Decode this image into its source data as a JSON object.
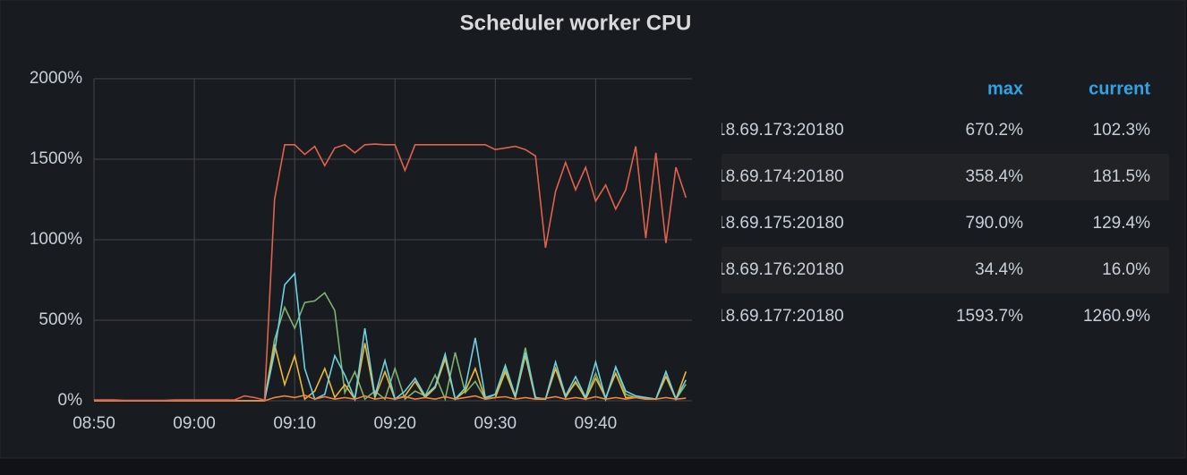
{
  "chart_data": {
    "type": "line",
    "title": "Scheduler worker CPU",
    "x": [
      "08:50",
      "08:51",
      "08:52",
      "08:53",
      "08:54",
      "08:55",
      "08:56",
      "08:57",
      "08:58",
      "08:59",
      "09:00",
      "09:01",
      "09:02",
      "09:03",
      "09:04",
      "09:05",
      "09:06",
      "09:07",
      "09:08",
      "09:09",
      "09:10",
      "09:11",
      "09:12",
      "09:13",
      "09:14",
      "09:15",
      "09:16",
      "09:17",
      "09:18",
      "09:19",
      "09:20",
      "09:21",
      "09:22",
      "09:23",
      "09:24",
      "09:25",
      "09:26",
      "09:27",
      "09:28",
      "09:29",
      "09:30",
      "09:31",
      "09:32",
      "09:33",
      "09:34",
      "09:35",
      "09:36",
      "09:37",
      "09:38",
      "09:39",
      "09:40",
      "09:41",
      "09:42",
      "09:43",
      "09:44",
      "09:45",
      "09:46",
      "09:47",
      "09:48",
      "09:49"
    ],
    "xlim": [
      "08:50",
      "09:49"
    ],
    "xticks": [
      "08:50",
      "09:00",
      "09:10",
      "09:20",
      "09:30",
      "09:40"
    ],
    "ylim": [
      0,
      2000
    ],
    "yticks": [
      {
        "value": 0,
        "label": "0%"
      },
      {
        "value": 500,
        "label": "500%"
      },
      {
        "value": 1000,
        "label": "1000%"
      },
      {
        "value": 1500,
        "label": "1500%"
      },
      {
        "value": 2000,
        "label": "2000%"
      }
    ],
    "grid": true,
    "legend_columns": [
      "max",
      "current"
    ],
    "series": [
      {
        "name": "18.69.173:20180",
        "color": "#7eb26d",
        "max": "670.2%",
        "current": "102.3%",
        "values": [
          0,
          0,
          0,
          0,
          0,
          0,
          0,
          0,
          0,
          0,
          0,
          0,
          0,
          0,
          0,
          0,
          0,
          0,
          380,
          580,
          450,
          610,
          620,
          670.2,
          560,
          50,
          180,
          10,
          60,
          10,
          200,
          10,
          60,
          30,
          160,
          10,
          300,
          50,
          120,
          10,
          40,
          200,
          30,
          330,
          20,
          10,
          200,
          30,
          110,
          20,
          170,
          10,
          210,
          40,
          20,
          20,
          10,
          180,
          10,
          102.3
        ]
      },
      {
        "name": "18.69.174:20180",
        "color": "#eab839",
        "max": "358.4%",
        "current": "181.5%",
        "values": [
          0,
          0,
          0,
          0,
          0,
          0,
          0,
          0,
          0,
          0,
          0,
          0,
          0,
          0,
          0,
          0,
          0,
          0,
          350,
          100,
          280,
          10,
          60,
          200,
          20,
          100,
          10,
          358.4,
          20,
          180,
          10,
          30,
          120,
          20,
          80,
          260,
          10,
          60,
          200,
          10,
          20,
          180,
          20,
          280,
          10,
          10,
          200,
          20,
          120,
          10,
          140,
          20,
          170,
          20,
          20,
          10,
          10,
          150,
          10,
          181.5
        ]
      },
      {
        "name": "18.69.175:20180",
        "color": "#6ed0e0",
        "max": "790.0%",
        "current": "129.4%",
        "values": [
          0,
          0,
          0,
          0,
          0,
          0,
          0,
          0,
          0,
          0,
          0,
          0,
          0,
          0,
          0,
          0,
          0,
          0,
          300,
          720,
          790,
          200,
          10,
          40,
          280,
          160,
          10,
          450,
          30,
          250,
          10,
          60,
          140,
          30,
          90,
          290,
          10,
          80,
          390,
          20,
          40,
          220,
          30,
          300,
          20,
          10,
          240,
          30,
          150,
          20,
          240,
          10,
          210,
          60,
          30,
          20,
          10,
          180,
          10,
          129.4
        ]
      },
      {
        "name": "18.69.176:20180",
        "color": "#ef843c",
        "max": "34.4%",
        "current": "16.0%",
        "values": [
          0,
          0,
          0,
          0,
          0,
          0,
          0,
          0,
          0,
          0,
          0,
          0,
          0,
          0,
          0,
          0,
          0,
          0,
          20,
          30,
          20,
          34.4,
          10,
          25,
          10,
          20,
          10,
          30,
          10,
          20,
          10,
          25,
          10,
          20,
          10,
          25,
          10,
          20,
          30,
          10,
          20,
          25,
          10,
          20,
          10,
          15,
          25,
          10,
          20,
          10,
          25,
          10,
          20,
          10,
          20,
          10,
          10,
          20,
          10,
          16.0
        ]
      },
      {
        "name": "18.69.177:20180",
        "color": "#e0624b",
        "max": "1593.7%",
        "current": "1260.9%",
        "values": [
          5,
          5,
          5,
          3,
          3,
          3,
          3,
          3,
          5,
          5,
          5,
          5,
          5,
          5,
          5,
          30,
          20,
          5,
          1250,
          1590,
          1590,
          1530,
          1580,
          1460,
          1570,
          1590,
          1540,
          1590,
          1593.7,
          1590,
          1590,
          1430,
          1590,
          1590,
          1590,
          1590,
          1590,
          1590,
          1590,
          1590,
          1560,
          1570,
          1580,
          1560,
          1520,
          950,
          1300,
          1480,
          1310,
          1450,
          1240,
          1340,
          1190,
          1310,
          1580,
          1010,
          1540,
          980,
          1450,
          1260.9
        ]
      }
    ]
  }
}
